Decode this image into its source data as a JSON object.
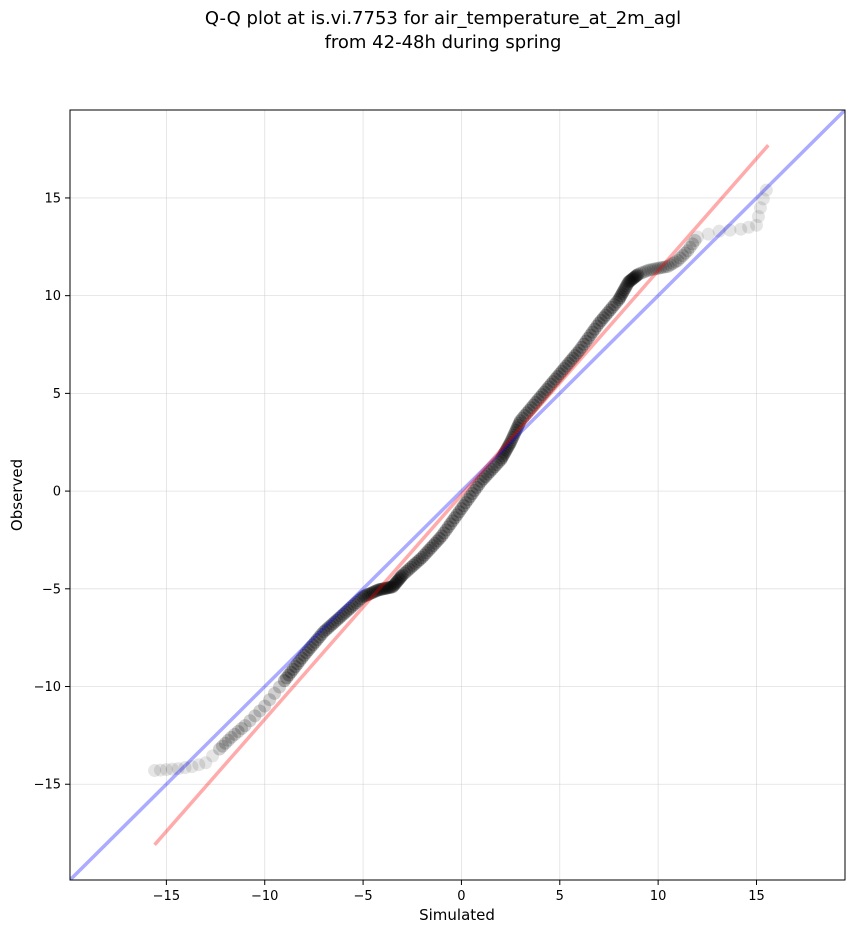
{
  "chart_data": {
    "type": "scatter",
    "title_lines": [
      "Q-Q plot at is.vi.7753 for air_temperature_at_2m_agl",
      "from 42-48h during spring"
    ],
    "xlabel": "Simulated",
    "ylabel": "Observed",
    "xlim": [
      -19.9,
      19.5
    ],
    "ylim": [
      -19.9,
      19.5
    ],
    "xticks": [
      -15,
      -10,
      -5,
      0,
      5,
      10,
      15
    ],
    "yticks": [
      -15,
      -10,
      -5,
      0,
      5,
      10,
      15
    ],
    "tick_labels": [
      "−15",
      "−10",
      "−5",
      "0",
      "5",
      "10",
      "15"
    ],
    "grid": true,
    "reference_lines": [
      {
        "kind": "identity",
        "color": "#0000ff",
        "alpha": 0.33,
        "x": [
          -19.9,
          19.5
        ],
        "y": [
          -19.9,
          19.5
        ]
      },
      {
        "kind": "fit",
        "color": "#ff0000",
        "alpha": 0.33,
        "x": [
          -15.6,
          15.6
        ],
        "y": [
          -18.1,
          17.7
        ]
      }
    ],
    "marker_color": "#000000",
    "quantile_curve": [
      [
        -15.6,
        -14.3
      ],
      [
        -15.0,
        -14.25
      ],
      [
        -14.4,
        -14.2
      ],
      [
        -13.7,
        -14.1
      ],
      [
        -13.0,
        -13.9
      ],
      [
        -12.3,
        -13.2
      ],
      [
        -11.7,
        -12.6
      ],
      [
        -11.0,
        -12.0
      ],
      [
        -10.0,
        -11.0
      ],
      [
        -9.0,
        -9.7
      ],
      [
        -8.0,
        -8.4
      ],
      [
        -7.0,
        -7.2
      ],
      [
        -6.0,
        -6.3
      ],
      [
        -5.0,
        -5.4
      ],
      [
        -4.2,
        -5.05
      ],
      [
        -3.5,
        -4.9
      ],
      [
        -3.0,
        -4.3
      ],
      [
        -2.0,
        -3.4
      ],
      [
        -1.0,
        -2.3
      ],
      [
        0.0,
        -0.9
      ],
      [
        1.0,
        0.5
      ],
      [
        2.0,
        1.6
      ],
      [
        2.5,
        2.5
      ],
      [
        3.0,
        3.6
      ],
      [
        4.0,
        4.8
      ],
      [
        5.0,
        6.0
      ],
      [
        6.0,
        7.2
      ],
      [
        7.0,
        8.6
      ],
      [
        8.0,
        9.8
      ],
      [
        8.5,
        10.7
      ],
      [
        9.0,
        11.1
      ],
      [
        9.5,
        11.3
      ],
      [
        10.0,
        11.4
      ],
      [
        10.5,
        11.5
      ],
      [
        11.0,
        11.8
      ],
      [
        11.5,
        12.3
      ],
      [
        12.0,
        13.0
      ],
      [
        13.1,
        13.3
      ],
      [
        14.2,
        13.4
      ],
      [
        15.0,
        13.6
      ],
      [
        15.2,
        14.5
      ],
      [
        15.5,
        15.4
      ]
    ]
  }
}
